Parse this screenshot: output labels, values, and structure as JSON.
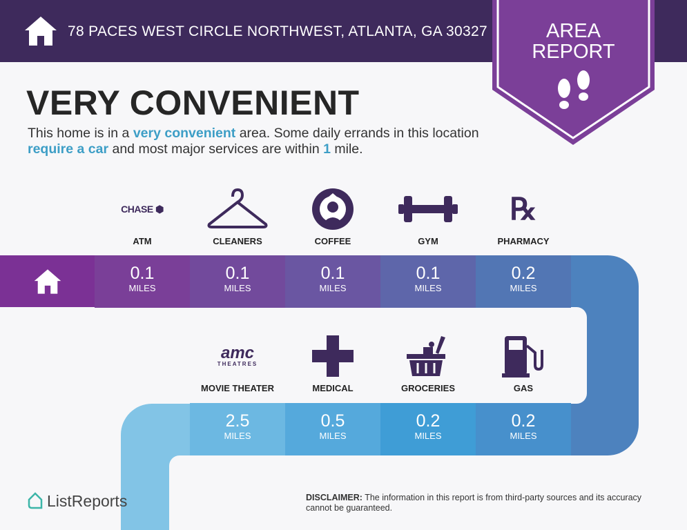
{
  "header": {
    "address": "78 PACES WEST CIRCLE NORTHWEST, ATLANTA, GA 30327",
    "badge_line1": "AREA",
    "badge_line2": "REPORT"
  },
  "headline": "VERY CONVENIENT",
  "description": {
    "p1": "This home is in a ",
    "h1": "very convenient",
    "p2": " area. Some daily errands in this location ",
    "h2": "require a car",
    "p3": " and most major services are within ",
    "h3": "1",
    "p4": " mile."
  },
  "row1": [
    {
      "label": "ATM",
      "brand": "CHASE",
      "value": "0.1",
      "unit": "MILES",
      "icon": "chase-logo",
      "color": "#7a3f98"
    },
    {
      "label": "CLEANERS",
      "value": "0.1",
      "unit": "MILES",
      "icon": "hanger-icon",
      "color": "#724a9c"
    },
    {
      "label": "COFFEE",
      "value": "0.1",
      "unit": "MILES",
      "icon": "starbucks-logo",
      "color": "#6a56a2"
    },
    {
      "label": "GYM",
      "value": "0.1",
      "unit": "MILES",
      "icon": "dumbbell-icon",
      "color": "#5e66aa"
    },
    {
      "label": "PHARMACY",
      "value": "0.2",
      "unit": "MILES",
      "icon": "rx-icon",
      "color": "#5276b4"
    }
  ],
  "row2": [
    {
      "label": "MOVIE THEATER",
      "brand": "amc",
      "brand_sub": "THEATRES",
      "value": "2.5",
      "unit": "MILES",
      "icon": "amc-logo",
      "color": "#6cb8e2"
    },
    {
      "label": "MEDICAL",
      "value": "0.5",
      "unit": "MILES",
      "icon": "cross-icon",
      "color": "#55a9dc"
    },
    {
      "label": "GROCERIES",
      "value": "0.2",
      "unit": "MILES",
      "icon": "basket-icon",
      "color": "#3f9dd6"
    },
    {
      "label": "GAS",
      "value": "0.2",
      "unit": "MILES",
      "icon": "gas-pump-icon",
      "color": "#4790cc"
    }
  ],
  "footer": {
    "brand": "ListReports",
    "disclaimer_label": "DISCLAIMER:",
    "disclaimer": " The information in this report is from third-party sources and its accuracy cannot be guaranteed."
  },
  "colors": {
    "header": "#3e2a5c",
    "badge": "#7b3f98",
    "highlight": "#3d9ec6",
    "icon": "#3e2a5c"
  }
}
